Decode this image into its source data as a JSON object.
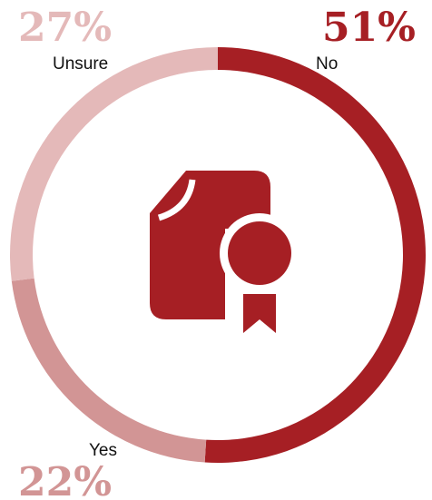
{
  "chart_data": {
    "type": "pie",
    "variant": "donut",
    "slices": [
      {
        "label": "No",
        "value": 51,
        "display": "51%",
        "color": "#a61f24"
      },
      {
        "label": "Yes",
        "value": 22,
        "display": "22%",
        "color": "#d29595"
      },
      {
        "label": "Unsure",
        "value": 27,
        "display": "27%",
        "color": "#e4b9b9"
      }
    ],
    "center_icon": "certificate-icon",
    "center_icon_color": "#a61f24"
  }
}
